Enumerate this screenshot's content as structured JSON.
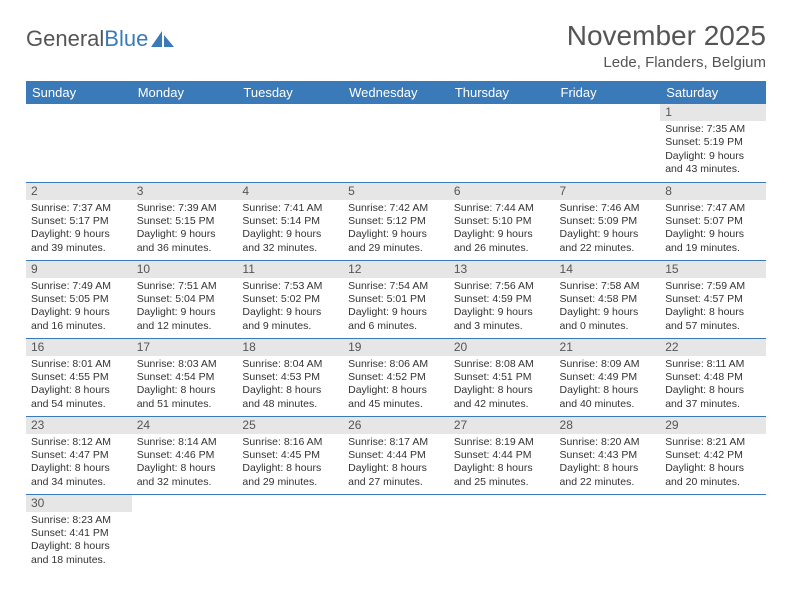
{
  "logo": {
    "text1": "General",
    "text2": "Blue"
  },
  "title": "November 2025",
  "location": "Lede, Flanders, Belgium",
  "colors": {
    "header_bg": "#3a7ab8",
    "header_text": "#ffffff",
    "daynum_bg": "#e6e6e6",
    "border": "#3a7ab8",
    "text": "#333333",
    "title_text": "#555555"
  },
  "weekdays": [
    "Sunday",
    "Monday",
    "Tuesday",
    "Wednesday",
    "Thursday",
    "Friday",
    "Saturday"
  ],
  "grid": [
    [
      null,
      null,
      null,
      null,
      null,
      null,
      {
        "n": "1",
        "sr": "7:35 AM",
        "ss": "5:19 PM",
        "dl": "9 hours and 43 minutes."
      }
    ],
    [
      {
        "n": "2",
        "sr": "7:37 AM",
        "ss": "5:17 PM",
        "dl": "9 hours and 39 minutes."
      },
      {
        "n": "3",
        "sr": "7:39 AM",
        "ss": "5:15 PM",
        "dl": "9 hours and 36 minutes."
      },
      {
        "n": "4",
        "sr": "7:41 AM",
        "ss": "5:14 PM",
        "dl": "9 hours and 32 minutes."
      },
      {
        "n": "5",
        "sr": "7:42 AM",
        "ss": "5:12 PM",
        "dl": "9 hours and 29 minutes."
      },
      {
        "n": "6",
        "sr": "7:44 AM",
        "ss": "5:10 PM",
        "dl": "9 hours and 26 minutes."
      },
      {
        "n": "7",
        "sr": "7:46 AM",
        "ss": "5:09 PM",
        "dl": "9 hours and 22 minutes."
      },
      {
        "n": "8",
        "sr": "7:47 AM",
        "ss": "5:07 PM",
        "dl": "9 hours and 19 minutes."
      }
    ],
    [
      {
        "n": "9",
        "sr": "7:49 AM",
        "ss": "5:05 PM",
        "dl": "9 hours and 16 minutes."
      },
      {
        "n": "10",
        "sr": "7:51 AM",
        "ss": "5:04 PM",
        "dl": "9 hours and 12 minutes."
      },
      {
        "n": "11",
        "sr": "7:53 AM",
        "ss": "5:02 PM",
        "dl": "9 hours and 9 minutes."
      },
      {
        "n": "12",
        "sr": "7:54 AM",
        "ss": "5:01 PM",
        "dl": "9 hours and 6 minutes."
      },
      {
        "n": "13",
        "sr": "7:56 AM",
        "ss": "4:59 PM",
        "dl": "9 hours and 3 minutes."
      },
      {
        "n": "14",
        "sr": "7:58 AM",
        "ss": "4:58 PM",
        "dl": "9 hours and 0 minutes."
      },
      {
        "n": "15",
        "sr": "7:59 AM",
        "ss": "4:57 PM",
        "dl": "8 hours and 57 minutes."
      }
    ],
    [
      {
        "n": "16",
        "sr": "8:01 AM",
        "ss": "4:55 PM",
        "dl": "8 hours and 54 minutes."
      },
      {
        "n": "17",
        "sr": "8:03 AM",
        "ss": "4:54 PM",
        "dl": "8 hours and 51 minutes."
      },
      {
        "n": "18",
        "sr": "8:04 AM",
        "ss": "4:53 PM",
        "dl": "8 hours and 48 minutes."
      },
      {
        "n": "19",
        "sr": "8:06 AM",
        "ss": "4:52 PM",
        "dl": "8 hours and 45 minutes."
      },
      {
        "n": "20",
        "sr": "8:08 AM",
        "ss": "4:51 PM",
        "dl": "8 hours and 42 minutes."
      },
      {
        "n": "21",
        "sr": "8:09 AM",
        "ss": "4:49 PM",
        "dl": "8 hours and 40 minutes."
      },
      {
        "n": "22",
        "sr": "8:11 AM",
        "ss": "4:48 PM",
        "dl": "8 hours and 37 minutes."
      }
    ],
    [
      {
        "n": "23",
        "sr": "8:12 AM",
        "ss": "4:47 PM",
        "dl": "8 hours and 34 minutes."
      },
      {
        "n": "24",
        "sr": "8:14 AM",
        "ss": "4:46 PM",
        "dl": "8 hours and 32 minutes."
      },
      {
        "n": "25",
        "sr": "8:16 AM",
        "ss": "4:45 PM",
        "dl": "8 hours and 29 minutes."
      },
      {
        "n": "26",
        "sr": "8:17 AM",
        "ss": "4:44 PM",
        "dl": "8 hours and 27 minutes."
      },
      {
        "n": "27",
        "sr": "8:19 AM",
        "ss": "4:44 PM",
        "dl": "8 hours and 25 minutes."
      },
      {
        "n": "28",
        "sr": "8:20 AM",
        "ss": "4:43 PM",
        "dl": "8 hours and 22 minutes."
      },
      {
        "n": "29",
        "sr": "8:21 AM",
        "ss": "4:42 PM",
        "dl": "8 hours and 20 minutes."
      }
    ],
    [
      {
        "n": "30",
        "sr": "8:23 AM",
        "ss": "4:41 PM",
        "dl": "8 hours and 18 minutes."
      },
      null,
      null,
      null,
      null,
      null,
      null
    ]
  ],
  "labels": {
    "sunrise": "Sunrise:",
    "sunset": "Sunset:",
    "daylight": "Daylight:"
  }
}
